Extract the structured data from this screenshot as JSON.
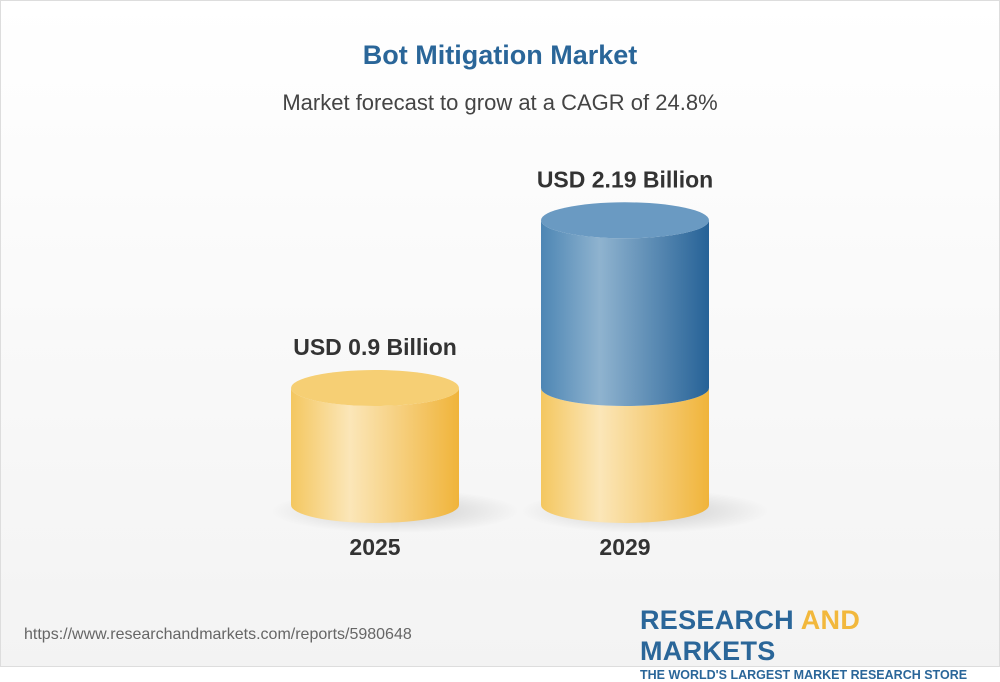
{
  "chart_data": {
    "type": "bar",
    "style": "3d-cylinder",
    "title": "Bot Mitigation Market",
    "subtitle": "Market forecast to grow at a CAGR of 24.8%",
    "categories": [
      "2025",
      "2029"
    ],
    "values": [
      0.9,
      2.19
    ],
    "unit": "USD Billion",
    "data_labels": [
      "USD 0.9 Billion",
      "USD 2.19 Billion"
    ],
    "colors": {
      "base": "#f2b83c",
      "growth": "#2a6699"
    }
  },
  "footer": {
    "url": "https://www.researchandmarkets.com/reports/5980648",
    "logo_part1": "RESEARCH ",
    "logo_part2": "AND",
    "logo_part3": " MARKETS",
    "tagline": "THE WORLD'S LARGEST MARKET RESEARCH STORE"
  }
}
